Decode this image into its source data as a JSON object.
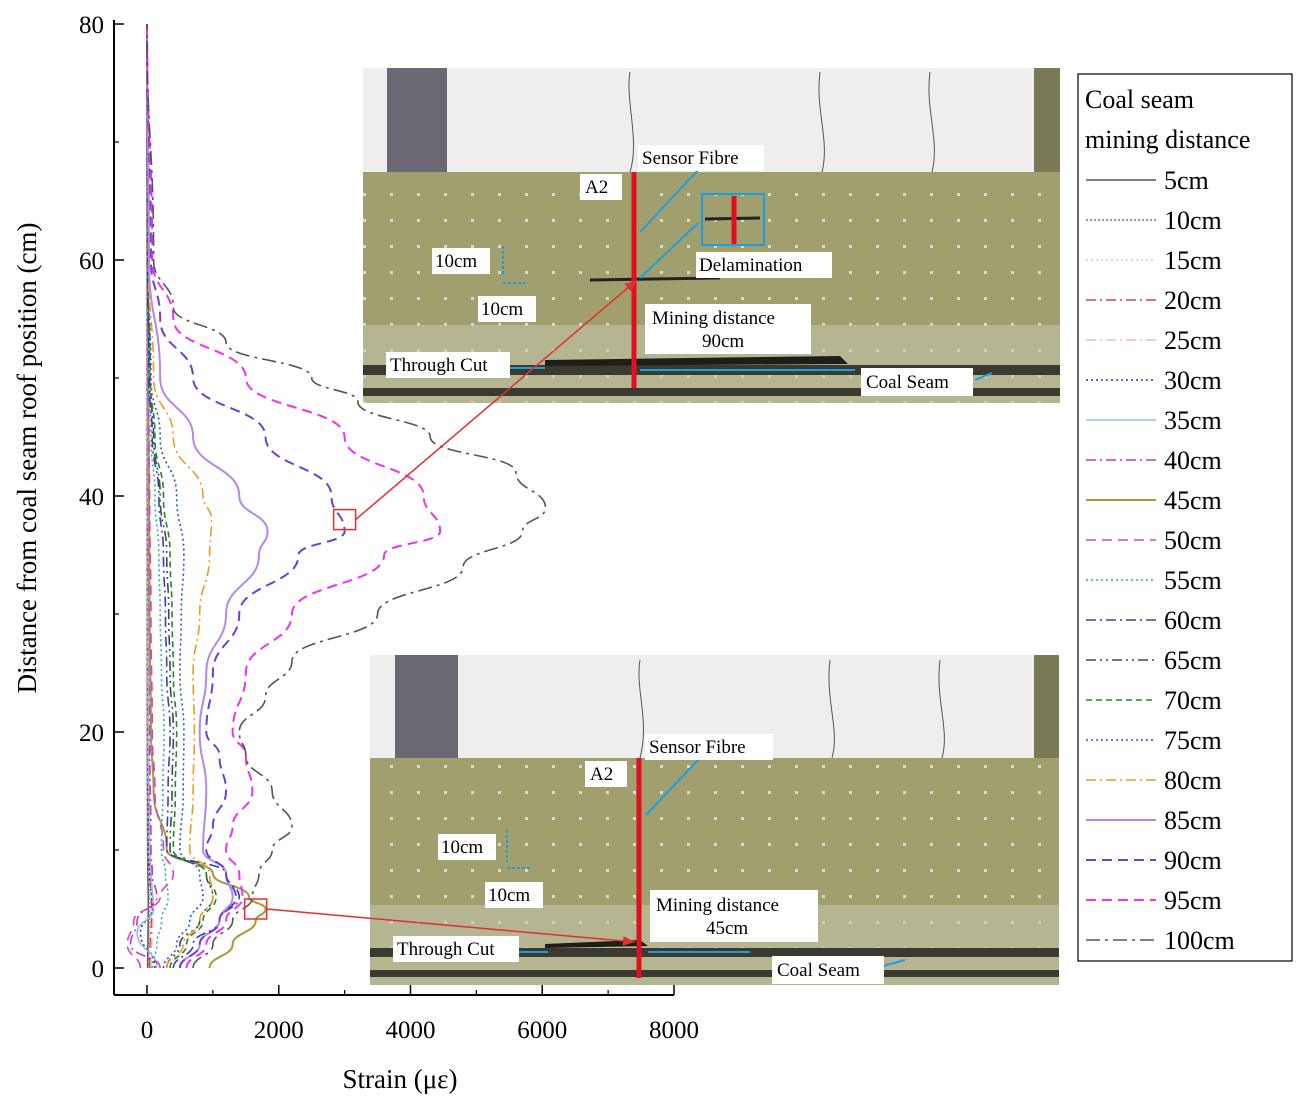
{
  "chart_data": {
    "type": "line",
    "xlabel": "Strain (με)",
    "ylabel": "Distance from coal seam roof position (cm)",
    "xlim": [
      -500,
      8000
    ],
    "ylim": [
      0,
      80
    ],
    "xticks": [
      "0",
      "2000",
      "4000",
      "6000",
      "8000"
    ],
    "yticks": [
      "0",
      "20",
      "40",
      "60",
      "80"
    ],
    "legend": {
      "title_line1": "Coal seam",
      "title_line2": "mining distance",
      "placement": "right"
    },
    "series": [
      {
        "name": "5cm",
        "color": "#555555",
        "dash": "solid",
        "y": [
          0,
          5,
          10,
          20,
          40,
          60,
          80
        ],
        "x": [
          10,
          20,
          10,
          5,
          3,
          2,
          0
        ]
      },
      {
        "name": "10cm",
        "color": "#777777",
        "dash": "short-dot",
        "y": [
          0,
          5,
          10,
          20,
          40,
          60,
          80
        ],
        "x": [
          20,
          30,
          15,
          8,
          5,
          3,
          0
        ]
      },
      {
        "name": "15cm",
        "color": "#cccccc",
        "dash": "dot",
        "y": [
          0,
          5,
          10,
          20,
          40,
          60,
          80
        ],
        "x": [
          30,
          50,
          20,
          10,
          5,
          3,
          0
        ]
      },
      {
        "name": "20cm",
        "color": "#d4444a",
        "dash": "dash-dot",
        "y": [
          0,
          5,
          10,
          20,
          40,
          60,
          80
        ],
        "x": [
          40,
          70,
          30,
          12,
          6,
          3,
          0
        ]
      },
      {
        "name": "25cm",
        "color": "#f2b8b8",
        "dash": "dash-dot",
        "y": [
          0,
          5,
          10,
          20,
          40,
          60,
          80
        ],
        "x": [
          60,
          90,
          40,
          15,
          8,
          4,
          0
        ]
      },
      {
        "name": "30cm",
        "color": "#2233aa",
        "dash": "dot",
        "y": [
          0,
          3,
          5,
          8,
          10,
          20,
          40,
          60,
          80
        ],
        "x": [
          120,
          -100,
          80,
          40,
          30,
          20,
          10,
          5,
          0
        ]
      },
      {
        "name": "35cm",
        "color": "#99bbdd",
        "dash": "solid",
        "y": [
          0,
          3,
          5,
          8,
          10,
          20,
          40,
          60,
          80
        ],
        "x": [
          150,
          -150,
          100,
          60,
          40,
          25,
          15,
          8,
          0
        ]
      },
      {
        "name": "40cm",
        "color": "#cc33cc",
        "dash": "dash-dot",
        "y": [
          0,
          2,
          4,
          6,
          8,
          10,
          20,
          40,
          60,
          80
        ],
        "x": [
          200,
          -250,
          -150,
          150,
          80,
          60,
          40,
          20,
          10,
          0
        ]
      },
      {
        "name": "45cm",
        "color": "#a89a30",
        "dash": "solid",
        "y": [
          0,
          2,
          4,
          5,
          6,
          8,
          10,
          15,
          20,
          30,
          40,
          50,
          60,
          80
        ],
        "x": [
          950,
          1300,
          1650,
          1800,
          1550,
          1000,
          300,
          100,
          60,
          40,
          30,
          20,
          10,
          0
        ]
      },
      {
        "name": "50cm",
        "color": "#d044d0",
        "dash": "dash",
        "y": [
          0,
          2,
          4,
          6,
          8,
          10,
          15,
          20,
          30,
          40,
          45,
          50,
          60,
          80
        ],
        "x": [
          -100,
          -300,
          -200,
          200,
          400,
          250,
          120,
          80,
          60,
          40,
          30,
          15,
          10,
          0
        ]
      },
      {
        "name": "55cm",
        "color": "#33aaaa",
        "dash": "dot",
        "y": [
          0,
          2,
          4,
          6,
          8,
          10,
          15,
          20,
          25,
          30,
          35,
          40,
          45,
          50,
          60,
          80
        ],
        "x": [
          80,
          150,
          220,
          320,
          280,
          220,
          240,
          260,
          220,
          200,
          180,
          120,
          60,
          30,
          10,
          0
        ]
      },
      {
        "name": "60cm",
        "color": "#3344aa",
        "dash": "dash-dot",
        "y": [
          0,
          2,
          4,
          6,
          8,
          10,
          15,
          20,
          25,
          30,
          35,
          40,
          45,
          50,
          60,
          80
        ],
        "x": [
          400,
          700,
          1100,
          1400,
          1200,
          300,
          320,
          350,
          300,
          280,
          250,
          180,
          80,
          30,
          10,
          0
        ]
      },
      {
        "name": "65cm",
        "color": "#444466",
        "dash": "dash-dot-dot",
        "y": [
          0,
          2,
          4,
          6,
          8,
          10,
          15,
          20,
          25,
          30,
          35,
          40,
          45,
          50,
          60,
          80
        ],
        "x": [
          300,
          500,
          800,
          1000,
          900,
          350,
          380,
          400,
          350,
          330,
          300,
          200,
          100,
          40,
          10,
          0
        ]
      },
      {
        "name": "70cm",
        "color": "#228822",
        "dash": "short-dash",
        "y": [
          0,
          2,
          4,
          6,
          8,
          10,
          15,
          20,
          25,
          30,
          35,
          40,
          45,
          50,
          60,
          80
        ],
        "x": [
          350,
          600,
          850,
          1050,
          900,
          400,
          430,
          450,
          400,
          380,
          350,
          250,
          120,
          50,
          15,
          0
        ]
      },
      {
        "name": "75cm",
        "color": "#2255cc",
        "dash": "dot",
        "y": [
          0,
          2,
          4,
          6,
          8,
          10,
          15,
          20,
          25,
          30,
          35,
          40,
          45,
          50,
          60,
          80
        ],
        "x": [
          250,
          450,
          650,
          850,
          800,
          500,
          550,
          560,
          500,
          520,
          560,
          450,
          200,
          60,
          15,
          0
        ]
      },
      {
        "name": "80cm",
        "color": "#ee9922",
        "dash": "dash-dot",
        "y": [
          0,
          2,
          4,
          6,
          8,
          10,
          15,
          20,
          25,
          30,
          35,
          38,
          40,
          45,
          50,
          60,
          80
        ],
        "x": [
          300,
          550,
          800,
          1000,
          950,
          650,
          700,
          720,
          700,
          800,
          950,
          980,
          850,
          400,
          100,
          20,
          0
        ]
      },
      {
        "name": "85cm",
        "color": "#b388e8",
        "dash": "solid",
        "y": [
          0,
          2,
          4,
          6,
          8,
          10,
          15,
          20,
          25,
          30,
          35,
          37,
          40,
          45,
          50,
          60,
          80
        ],
        "x": [
          500,
          800,
          1100,
          1300,
          1200,
          850,
          900,
          800,
          900,
          1200,
          1700,
          1830,
          1400,
          700,
          200,
          30,
          0
        ]
      },
      {
        "name": "90cm",
        "color": "#6a3fd8",
        "dash": "dash",
        "y": [
          0,
          2,
          4,
          6,
          8,
          10,
          12,
          15,
          18,
          20,
          25,
          30,
          35,
          37,
          40,
          45,
          50,
          55,
          60,
          80
        ],
        "x": [
          500,
          800,
          1100,
          1350,
          1200,
          900,
          1000,
          1200,
          1100,
          900,
          1000,
          1400,
          2300,
          3000,
          2800,
          1800,
          700,
          200,
          60,
          0
        ]
      },
      {
        "name": "95cm",
        "color": "#ee33ee",
        "dash": "dash",
        "y": [
          0,
          2,
          4,
          6,
          8,
          10,
          12,
          15,
          18,
          20,
          25,
          30,
          35,
          37,
          40,
          45,
          50,
          55,
          60,
          80
        ],
        "x": [
          600,
          900,
          1200,
          1450,
          1400,
          1200,
          1300,
          1600,
          1500,
          1300,
          1500,
          2200,
          3600,
          4450,
          4200,
          3000,
          1500,
          400,
          80,
          0
        ]
      },
      {
        "name": "100cm",
        "color": "#555555",
        "dash": "dash-dot-long",
        "y": [
          0,
          2,
          4,
          6,
          8,
          10,
          12,
          15,
          18,
          20,
          23,
          26,
          30,
          34,
          37,
          39,
          42,
          45,
          48,
          50,
          53,
          56,
          60,
          80
        ],
        "x": [
          700,
          1000,
          1300,
          1600,
          1700,
          1900,
          2200,
          1900,
          1500,
          1400,
          1800,
          2200,
          3500,
          4800,
          5700,
          6050,
          5600,
          4300,
          3200,
          2500,
          1200,
          400,
          100,
          0
        ]
      }
    ],
    "annotations": [
      {
        "kind": "marker",
        "x": 3000,
        "y": 38
      },
      {
        "kind": "marker",
        "x": 1650,
        "y": 5
      }
    ]
  },
  "insets": [
    {
      "sensor_label": "Sensor Fibre",
      "section_label": "A2",
      "v_scale": "10cm",
      "h_scale": "10cm",
      "delamination": "Delamination",
      "mining_line1": "Mining distance",
      "mining_line2": "90cm",
      "through_cut": "Through Cut",
      "coal_seam": "Coal Seam"
    },
    {
      "sensor_label": "Sensor Fibre",
      "section_label": "A2",
      "v_scale": "10cm",
      "h_scale": "10cm",
      "mining_line1": "Mining distance",
      "mining_line2": "45cm",
      "through_cut": "Through Cut",
      "coal_seam": "Coal Seam"
    }
  ]
}
